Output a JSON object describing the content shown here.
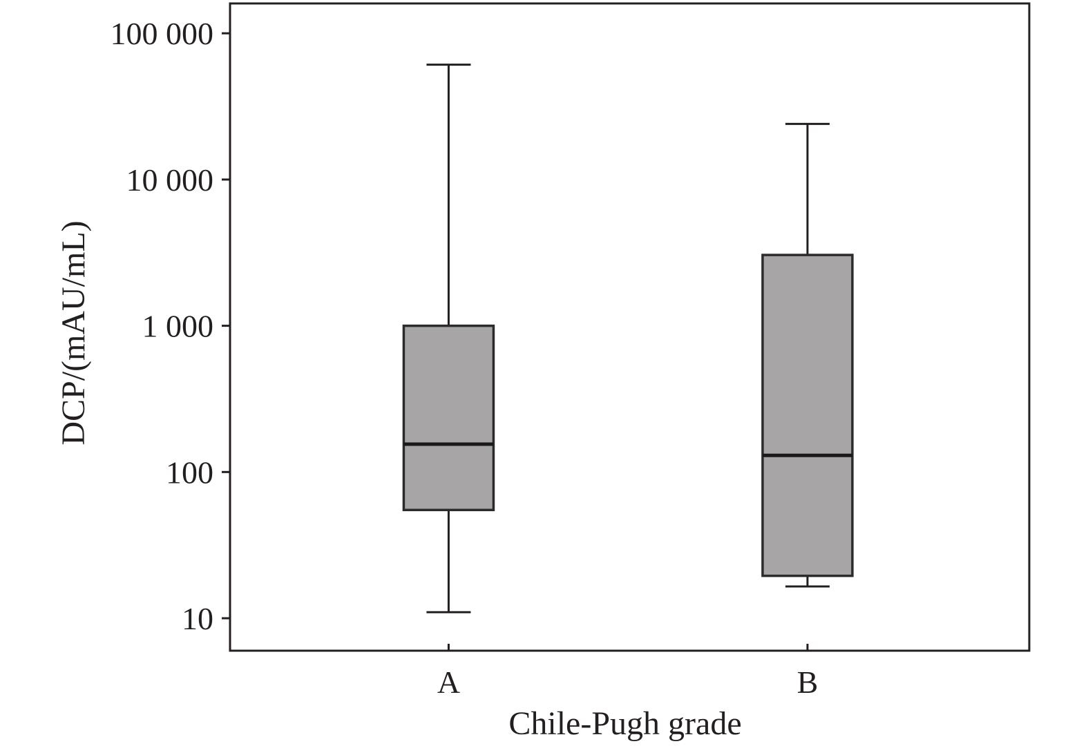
{
  "chart_data": {
    "type": "box",
    "xlabel": "Chile-Pugh grade",
    "ylabel": "DCP/(mAU/mL)",
    "yscale": "log",
    "ylim": [
      6,
      160000
    ],
    "yticks": [
      {
        "value": 10,
        "label": "10"
      },
      {
        "value": 100,
        "label": "100"
      },
      {
        "value": 1000,
        "label": "1 000"
      },
      {
        "value": 10000,
        "label": "10 000"
      },
      {
        "value": 100000,
        "label": "100 000"
      }
    ],
    "categories": [
      "A",
      "B"
    ],
    "boxes": [
      {
        "category": "A",
        "whisker_low": 11,
        "q1": 55,
        "median": 155,
        "q3": 1000,
        "whisker_high": 61000
      },
      {
        "category": "B",
        "whisker_low": 16.5,
        "q1": 19.5,
        "median": 130,
        "q3": 3050,
        "whisker_high": 24000
      }
    ],
    "grid": false,
    "colors": {
      "box_fill": "#a7a5a6",
      "line": "#231f20",
      "median": "#1a1a1a"
    }
  }
}
